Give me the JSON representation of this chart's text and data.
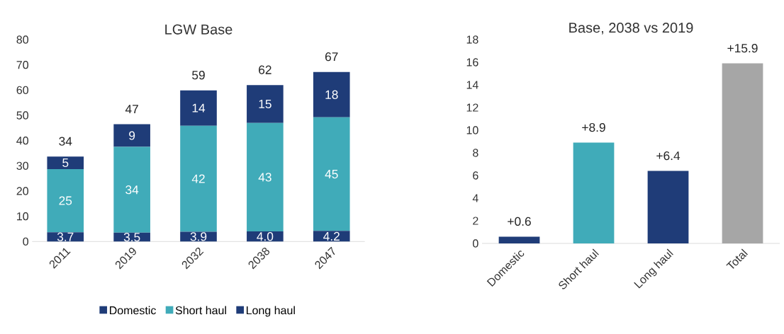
{
  "chart_data": [
    {
      "type": "bar",
      "title": "LGW Base",
      "categories": [
        "2011",
        "2019",
        "2032",
        "2038",
        "2047"
      ],
      "stacked": true,
      "legend": "bottom",
      "series": [
        {
          "name": "Domestic",
          "color": "#1f3c78",
          "values": [
            3.7,
            3.5,
            3.9,
            4.0,
            4.2
          ],
          "value_labels": [
            "3.7",
            "3.5",
            "3.9",
            "4.0",
            "4.2"
          ]
        },
        {
          "name": "Short haul",
          "color": "#40abb9",
          "values": [
            25,
            34,
            42,
            43,
            45
          ],
          "value_labels": [
            "25",
            "34",
            "42",
            "43",
            "45"
          ]
        },
        {
          "name": "Long haul",
          "color": "#1f3c78",
          "values": [
            5,
            9,
            14,
            15,
            18
          ],
          "value_labels": [
            "5",
            "9",
            "14",
            "15",
            "18"
          ]
        }
      ],
      "totals": [
        "34",
        "47",
        "59",
        "62",
        "67"
      ],
      "ylim": [
        0,
        80
      ],
      "yticks": [
        0,
        10,
        20,
        30,
        40,
        50,
        60,
        70,
        80
      ]
    },
    {
      "type": "bar",
      "title": "Base, 2038 vs 2019",
      "categories": [
        "Domestic",
        "Short haul",
        "Long haul",
        "Total"
      ],
      "values": [
        0.6,
        8.9,
        6.4,
        15.9
      ],
      "colors": [
        "#1f3c78",
        "#40abb9",
        "#1f3c78",
        "#a6a6a6"
      ],
      "value_labels": [
        "+0.6",
        "+8.9",
        "+6.4",
        "+15.9"
      ],
      "ylim": [
        0,
        18
      ],
      "yticks": [
        0,
        2,
        4,
        6,
        8,
        10,
        12,
        14,
        16,
        18
      ]
    }
  ]
}
